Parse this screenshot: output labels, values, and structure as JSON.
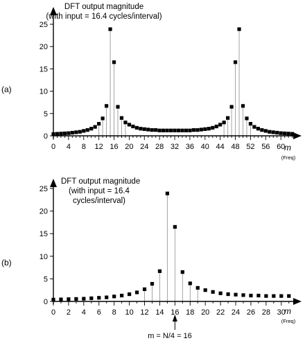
{
  "chart_data": [
    {
      "type": "scatter",
      "panel_label": "(a)",
      "title_lines": [
        "DFT output magnitude",
        "(with input = 16.4 cycles/interval)"
      ],
      "xlabel": "m",
      "xunit": "(Freq)",
      "x_ticks": [
        0,
        4,
        8,
        12,
        16,
        20,
        24,
        28,
        32,
        36,
        40,
        44,
        48,
        52,
        56,
        60
      ],
      "x_tick_labels": [
        "0",
        "4",
        "8",
        "12",
        "16",
        "20",
        "24",
        "28",
        "32",
        "36",
        "40",
        "44",
        "48",
        "52",
        "56",
        "60"
      ],
      "xlim": [
        0,
        63
      ],
      "y_ticks": [
        0,
        5,
        10,
        15,
        20,
        25
      ],
      "y_tick_labels": [
        "0",
        "5",
        "10",
        "15",
        "20",
        "25"
      ],
      "ylim": [
        0,
        25
      ],
      "grid": false,
      "stem_lines": true,
      "x": [
        0,
        1,
        2,
        3,
        4,
        5,
        6,
        7,
        8,
        9,
        10,
        11,
        12,
        13,
        14,
        15,
        16,
        17,
        18,
        19,
        20,
        21,
        22,
        23,
        24,
        25,
        26,
        27,
        28,
        29,
        30,
        31,
        32,
        33,
        34,
        35,
        36,
        37,
        38,
        39,
        40,
        41,
        42,
        43,
        44,
        45,
        46,
        47,
        48,
        49,
        50,
        51,
        52,
        53,
        54,
        55,
        56,
        57,
        58,
        59,
        60,
        61,
        62,
        63
      ],
      "values": [
        0.4,
        0.45,
        0.5,
        0.55,
        0.6,
        0.7,
        0.8,
        0.9,
        1.1,
        1.3,
        1.6,
        2.0,
        2.7,
        3.9,
        6.7,
        23.9,
        16.5,
        6.5,
        4.0,
        3.0,
        2.5,
        2.1,
        1.8,
        1.6,
        1.5,
        1.4,
        1.3,
        1.3,
        1.2,
        1.2,
        1.2,
        1.2,
        1.2,
        1.2,
        1.2,
        1.2,
        1.2,
        1.3,
        1.3,
        1.4,
        1.5,
        1.6,
        1.8,
        2.1,
        2.5,
        3.0,
        4.0,
        6.5,
        16.5,
        23.9,
        6.7,
        3.9,
        2.7,
        2.0,
        1.6,
        1.3,
        1.1,
        0.9,
        0.8,
        0.7,
        0.6,
        0.55,
        0.5,
        0.45
      ]
    },
    {
      "type": "scatter",
      "panel_label": "(b)",
      "title_lines": [
        "DFT output magnitude",
        "(with input = 16.4",
        "cycles/interval)"
      ],
      "xlabel": "m",
      "xunit": "(Freq)",
      "x_ticks": [
        0,
        2,
        4,
        6,
        8,
        10,
        12,
        14,
        16,
        18,
        20,
        22,
        24,
        26,
        28,
        30
      ],
      "x_tick_labels": [
        "0",
        "2",
        "4",
        "6",
        "8",
        "10",
        "12",
        "14",
        "16",
        "18",
        "20",
        "22",
        "24",
        "26",
        "28",
        "30"
      ],
      "xlim": [
        0,
        31
      ],
      "y_ticks": [
        0,
        5,
        10,
        15,
        20,
        25
      ],
      "y_tick_labels": [
        "0",
        "5",
        "10",
        "15",
        "20",
        "25"
      ],
      "ylim": [
        0,
        25
      ],
      "grid": false,
      "stem_lines": true,
      "x": [
        0,
        1,
        2,
        3,
        4,
        5,
        6,
        7,
        8,
        9,
        10,
        11,
        12,
        13,
        14,
        15,
        16,
        17,
        18,
        19,
        20,
        21,
        22,
        23,
        24,
        25,
        26,
        27,
        28,
        29,
        30,
        31
      ],
      "values": [
        0.4,
        0.45,
        0.5,
        0.55,
        0.6,
        0.7,
        0.8,
        0.9,
        1.1,
        1.3,
        1.6,
        2.0,
        2.7,
        3.9,
        6.7,
        23.9,
        16.5,
        6.5,
        4.0,
        3.0,
        2.5,
        2.1,
        1.8,
        1.6,
        1.5,
        1.4,
        1.3,
        1.3,
        1.2,
        1.2,
        1.2,
        1.2
      ],
      "annotation": {
        "text": "m = N/4 = 16",
        "x": 16
      }
    }
  ]
}
